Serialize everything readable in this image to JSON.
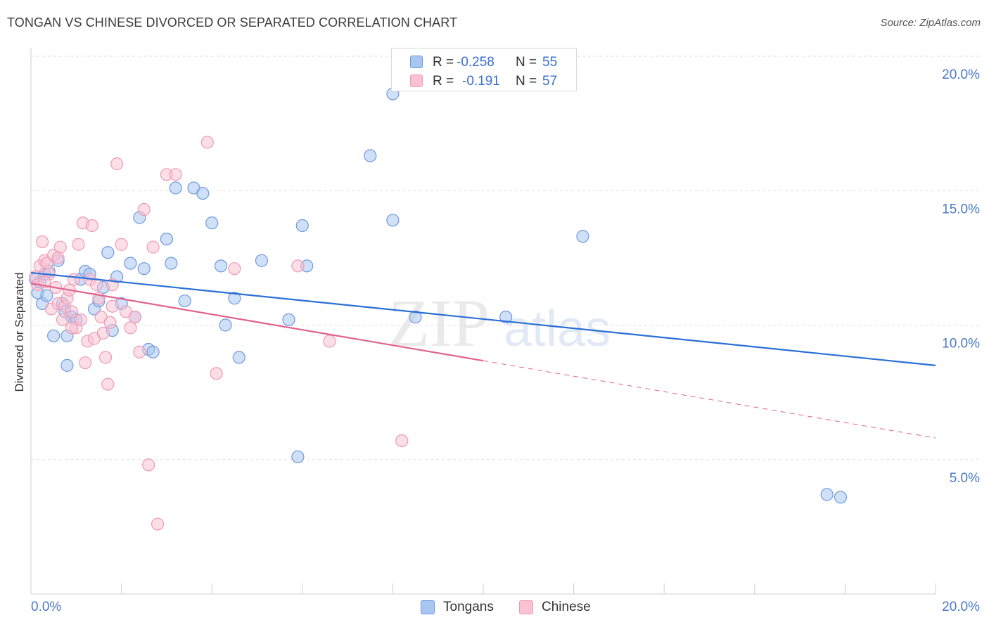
{
  "title": "TONGAN VS CHINESE DIVORCED OR SEPARATED CORRELATION CHART",
  "source": "Source: ZipAtlas.com",
  "watermark": {
    "zip": "ZIP",
    "atlas": "atlas"
  },
  "legend_top": [
    {
      "swatch_color": "#a9c6f0",
      "border_color": "#6d9ae0",
      "r_label": "R =",
      "r_value": "-0.258",
      "n_label": "N =",
      "n_value": "55"
    },
    {
      "swatch_color": "#f9c3d3",
      "border_color": "#ee9ab5",
      "r_label": "R =",
      "r_value": "-0.191",
      "n_label": "N =",
      "n_value": "57"
    }
  ],
  "legend_bottom": [
    {
      "label": "Tongans",
      "swatch_color": "#a9c6f0",
      "border_color": "#6d9ae0"
    },
    {
      "label": "Chinese",
      "swatch_color": "#f9c3d3",
      "border_color": "#ee9ab5"
    }
  ],
  "chart_data": {
    "type": "scatter",
    "title": "TONGAN VS CHINESE DIVORCED OR SEPARATED CORRELATION CHART",
    "xlabel": "",
    "ylabel": "Divorced or Separated",
    "xlim": [
      0,
      20
    ],
    "ylim": [
      0,
      20
    ],
    "x_tick_labels": [
      "0.0%",
      "20.0%"
    ],
    "y_ticks": [
      5,
      10,
      15,
      20
    ],
    "y_tick_labels": [
      "5.0%",
      "10.0%",
      "15.0%",
      "20.0%"
    ],
    "grid": true,
    "series": [
      {
        "name": "Tongans",
        "color": "#6d9ae0",
        "fill": "#a9c6f0",
        "line_color": "#2a6fd6",
        "trend": {
          "x": [
            0,
            20
          ],
          "y": [
            11.95,
            8.5
          ],
          "dashed_from": null
        },
        "points": [
          [
            0.1,
            11.7
          ],
          [
            0.15,
            11.2
          ],
          [
            0.2,
            11.6
          ],
          [
            0.25,
            10.8
          ],
          [
            0.3,
            11.9
          ],
          [
            0.35,
            11.1
          ],
          [
            0.4,
            12.0
          ],
          [
            0.5,
            9.6
          ],
          [
            0.6,
            12.4
          ],
          [
            0.7,
            10.8
          ],
          [
            0.75,
            10.5
          ],
          [
            0.8,
            9.6
          ],
          [
            0.9,
            10.3
          ],
          [
            1.0,
            10.2
          ],
          [
            1.1,
            11.7
          ],
          [
            1.2,
            12.0
          ],
          [
            1.3,
            11.9
          ],
          [
            1.4,
            10.6
          ],
          [
            1.5,
            10.9
          ],
          [
            1.6,
            11.4
          ],
          [
            1.7,
            12.7
          ],
          [
            1.8,
            9.8
          ],
          [
            1.9,
            11.8
          ],
          [
            2.0,
            10.8
          ],
          [
            2.2,
            12.3
          ],
          [
            2.3,
            10.3
          ],
          [
            2.4,
            14.0
          ],
          [
            2.5,
            12.1
          ],
          [
            2.6,
            9.1
          ],
          [
            2.7,
            9.0
          ],
          [
            3.0,
            13.2
          ],
          [
            3.1,
            12.3
          ],
          [
            3.2,
            15.1
          ],
          [
            3.4,
            10.9
          ],
          [
            3.6,
            15.1
          ],
          [
            3.8,
            14.9
          ],
          [
            4.0,
            13.8
          ],
          [
            4.2,
            12.2
          ],
          [
            4.3,
            10.0
          ],
          [
            4.5,
            11.0
          ],
          [
            4.6,
            8.8
          ],
          [
            5.1,
            12.4
          ],
          [
            5.7,
            10.2
          ],
          [
            5.9,
            5.1
          ],
          [
            6.0,
            13.7
          ],
          [
            6.1,
            12.2
          ],
          [
            7.5,
            16.3
          ],
          [
            8.0,
            18.6
          ],
          [
            8.0,
            13.9
          ],
          [
            8.5,
            10.3
          ],
          [
            10.5,
            10.3
          ],
          [
            12.2,
            13.3
          ],
          [
            17.6,
            3.7
          ],
          [
            17.9,
            3.6
          ],
          [
            0.8,
            8.5
          ]
        ]
      },
      {
        "name": "Chinese",
        "color": "#ee9ab5",
        "fill": "#f9c3d3",
        "line_color": "#e2628c",
        "trend": {
          "x": [
            0,
            20
          ],
          "y": [
            11.55,
            5.8
          ],
          "dashed_from": 10
        },
        "points": [
          [
            0.1,
            11.8
          ],
          [
            0.15,
            11.5
          ],
          [
            0.2,
            12.2
          ],
          [
            0.25,
            13.1
          ],
          [
            0.3,
            12.4
          ],
          [
            0.35,
            12.3
          ],
          [
            0.4,
            11.9
          ],
          [
            0.45,
            10.6
          ],
          [
            0.5,
            12.6
          ],
          [
            0.55,
            11.4
          ],
          [
            0.6,
            10.8
          ],
          [
            0.65,
            12.9
          ],
          [
            0.7,
            10.2
          ],
          [
            0.75,
            10.7
          ],
          [
            0.8,
            11.0
          ],
          [
            0.85,
            11.3
          ],
          [
            0.9,
            10.5
          ],
          [
            0.95,
            11.7
          ],
          [
            1.0,
            9.9
          ],
          [
            1.05,
            13.0
          ],
          [
            1.1,
            10.2
          ],
          [
            1.15,
            13.8
          ],
          [
            1.2,
            8.6
          ],
          [
            1.25,
            9.4
          ],
          [
            1.3,
            11.7
          ],
          [
            1.35,
            13.7
          ],
          [
            1.4,
            9.5
          ],
          [
            1.45,
            11.5
          ],
          [
            1.5,
            11.0
          ],
          [
            1.55,
            10.3
          ],
          [
            1.6,
            9.7
          ],
          [
            1.65,
            8.8
          ],
          [
            1.7,
            7.8
          ],
          [
            1.75,
            10.1
          ],
          [
            1.8,
            10.7
          ],
          [
            1.9,
            16.0
          ],
          [
            2.0,
            13.0
          ],
          [
            2.1,
            10.5
          ],
          [
            2.2,
            9.9
          ],
          [
            2.3,
            10.3
          ],
          [
            2.4,
            9.0
          ],
          [
            2.5,
            14.3
          ],
          [
            2.6,
            4.8
          ],
          [
            2.7,
            12.9
          ],
          [
            2.8,
            2.6
          ],
          [
            3.0,
            15.6
          ],
          [
            3.2,
            15.6
          ],
          [
            3.9,
            16.8
          ],
          [
            4.1,
            8.2
          ],
          [
            4.5,
            12.1
          ],
          [
            5.9,
            12.2
          ],
          [
            6.6,
            9.4
          ],
          [
            8.2,
            5.7
          ],
          [
            0.6,
            12.5
          ],
          [
            0.9,
            9.9
          ],
          [
            1.8,
            11.5
          ],
          [
            0.3,
            11.6
          ]
        ]
      }
    ]
  }
}
